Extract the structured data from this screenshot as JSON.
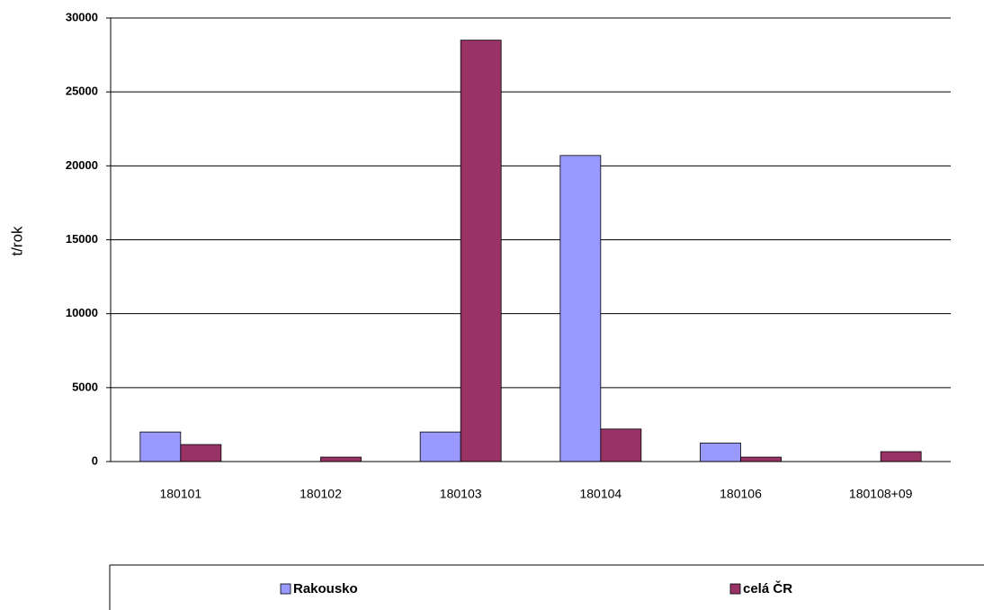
{
  "chart_data": {
    "type": "bar",
    "y_label": "t/rok",
    "categories": [
      "180101",
      "180102",
      "180103",
      "180104",
      "180106",
      "180108+09"
    ],
    "series": [
      {
        "name": "Rakousko",
        "color": "#9999ff",
        "values": [
          2000,
          0,
          2000,
          20700,
          1250,
          0
        ]
      },
      {
        "name": "celá ČR",
        "color": "#993366",
        "values": [
          1150,
          300,
          28500,
          2200,
          300,
          670
        ]
      }
    ],
    "ylim": [
      0,
      30000
    ],
    "yticks": [
      0,
      5000,
      10000,
      15000,
      20000,
      25000,
      30000
    ],
    "grid": true,
    "legend": "bottom"
  }
}
